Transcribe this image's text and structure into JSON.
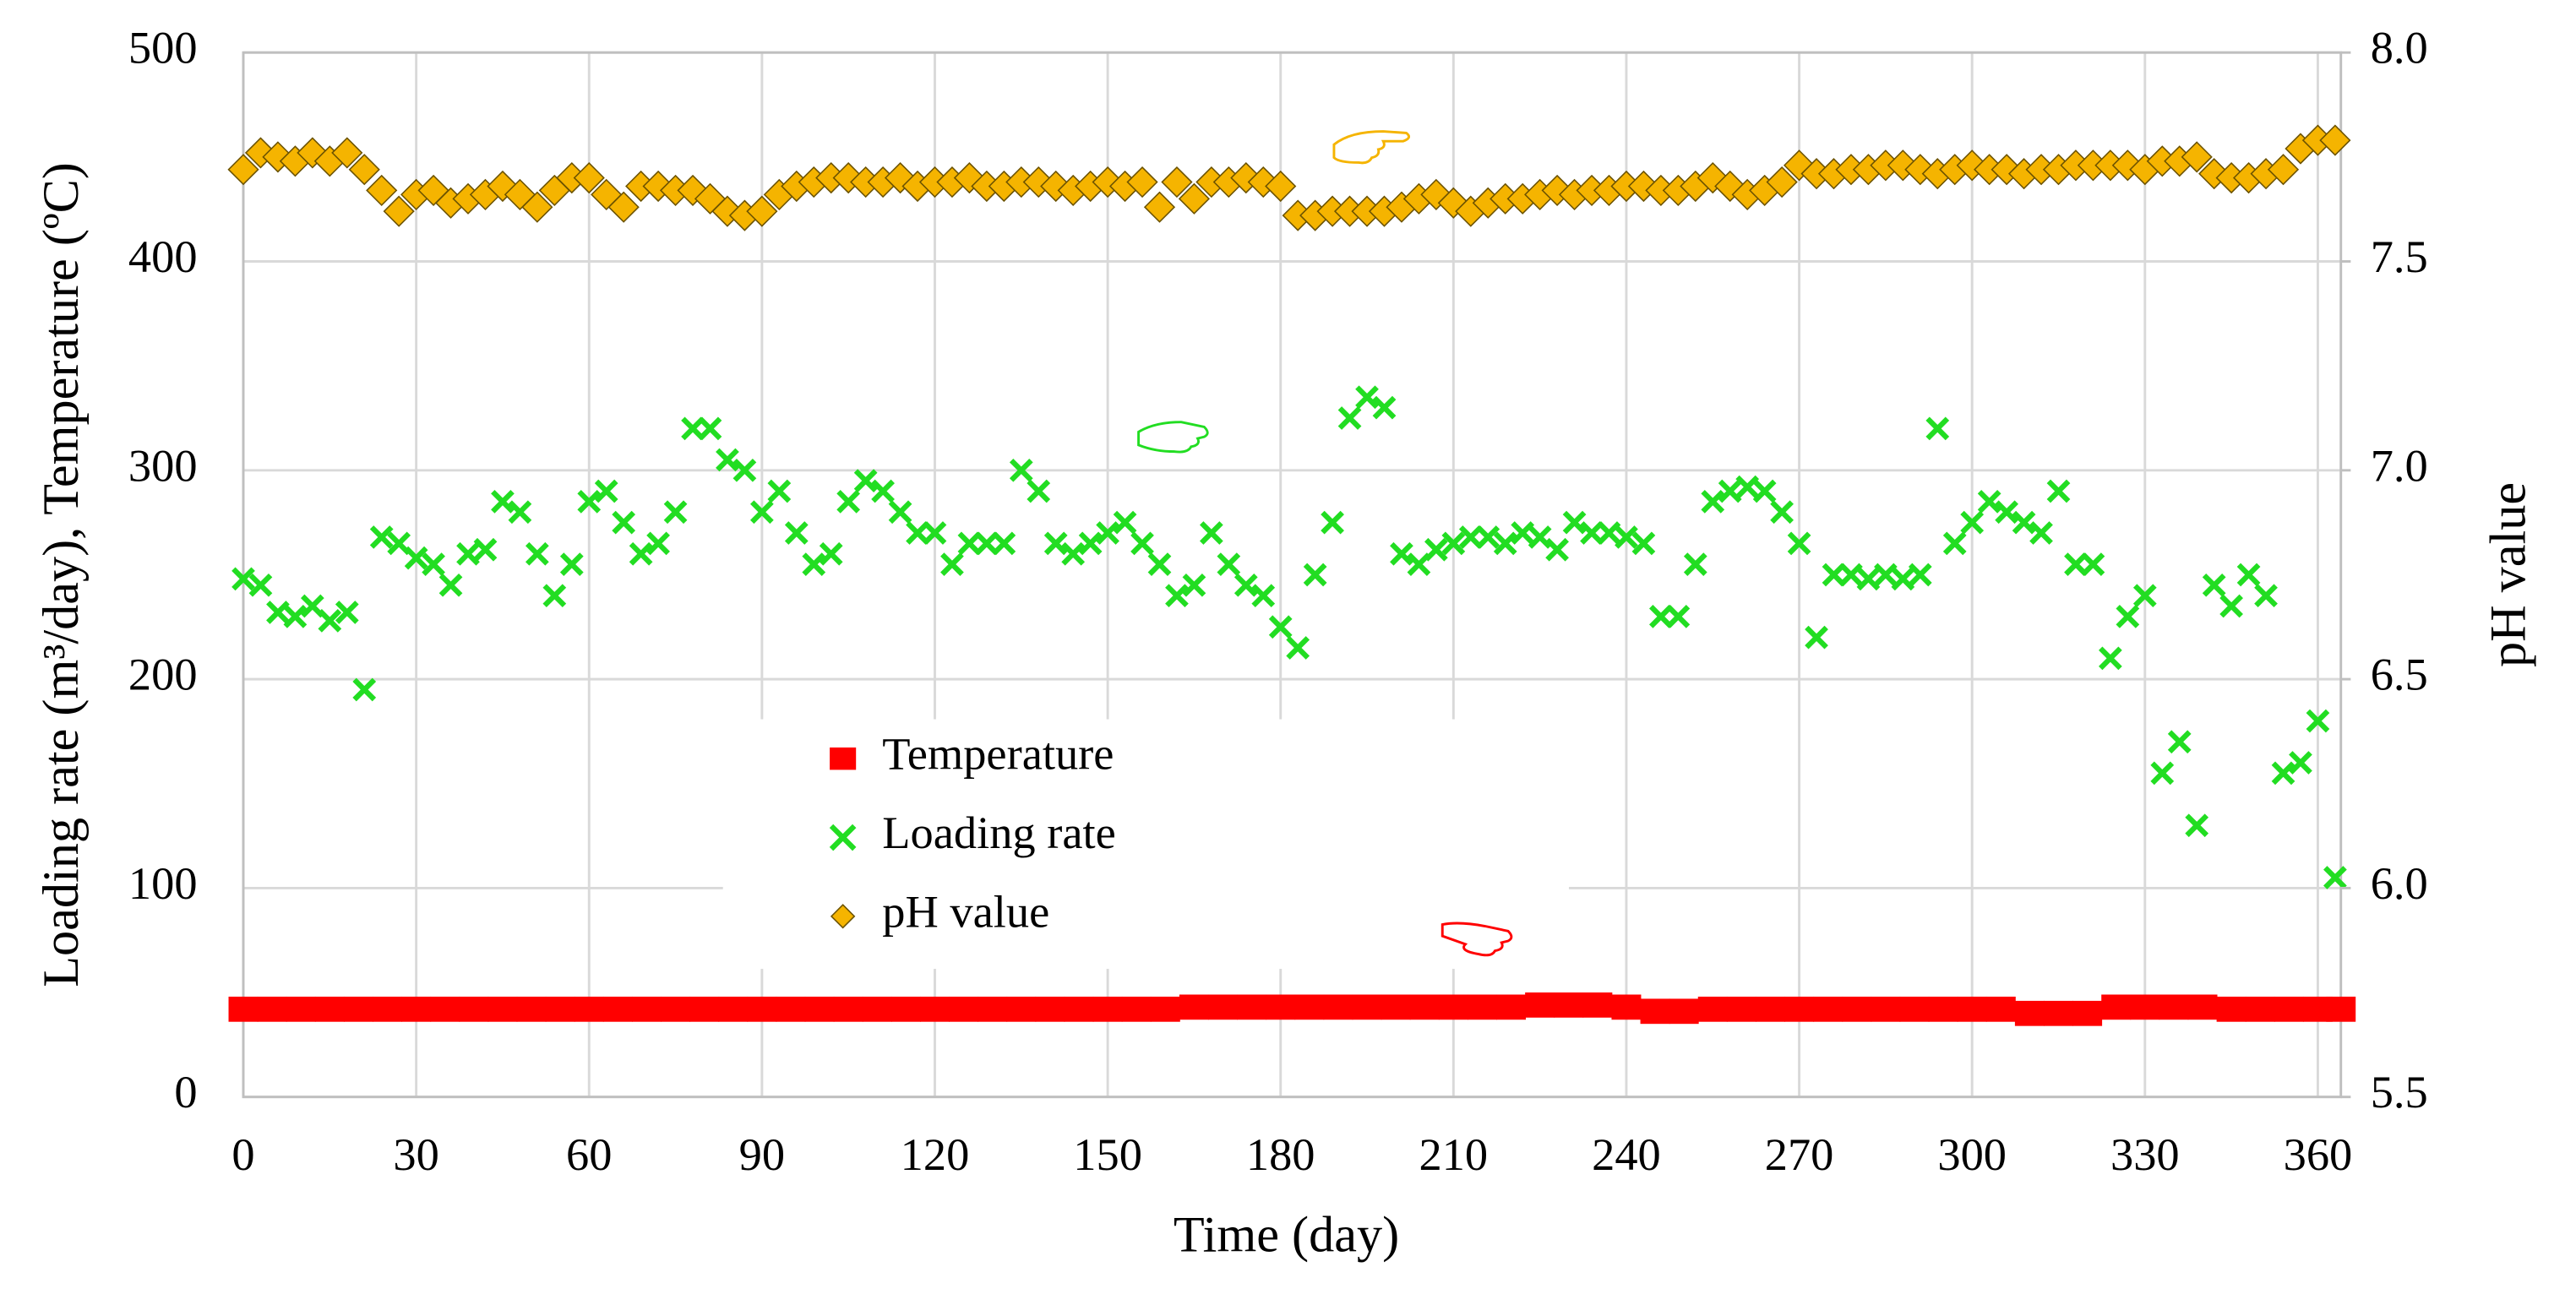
{
  "chart_data": {
    "type": "scatter",
    "xlabel": "Time (day)",
    "ylabel": "Loading rate (m³/day), Temperature (ºC)",
    "y2label": "pH value",
    "xlim": [
      0,
      364
    ],
    "xticks": [
      0,
      30,
      60,
      90,
      120,
      150,
      180,
      210,
      240,
      270,
      300,
      330,
      360
    ],
    "ylim": [
      0,
      500
    ],
    "yticks": [
      0,
      100,
      200,
      300,
      400,
      500
    ],
    "y2lim": [
      5.5,
      8.0
    ],
    "y2ticks": [
      5.5,
      {
        "value": 6,
        "label": "6.0"
      },
      6.5,
      {
        "value": 7,
        "label": "7.0"
      },
      7.5,
      {
        "value": 8,
        "label": "8.0"
      }
    ],
    "grid": true,
    "legend": "center",
    "series": [
      {
        "name": "Temperature",
        "color": "#ff0000",
        "marker": "square",
        "x": [
          0,
          5,
          10,
          15,
          20,
          25,
          30,
          35,
          40,
          45,
          50,
          55,
          60,
          65,
          70,
          75,
          80,
          85,
          90,
          95,
          100,
          105,
          110,
          115,
          120,
          125,
          130,
          135,
          140,
          145,
          150,
          155,
          160,
          165,
          170,
          175,
          180,
          185,
          190,
          195,
          200,
          205,
          210,
          215,
          220,
          225,
          230,
          235,
          240,
          245,
          250,
          255,
          260,
          265,
          270,
          275,
          280,
          285,
          290,
          295,
          300,
          305,
          310,
          315,
          320,
          325,
          330,
          335,
          340,
          345,
          350,
          355,
          360,
          364
        ],
        "values": [
          42,
          42,
          42,
          42,
          42,
          42,
          42,
          42,
          42,
          42,
          42,
          42,
          42,
          42,
          42,
          42,
          42,
          42,
          42,
          42,
          42,
          42,
          42,
          42,
          42,
          42,
          42,
          42,
          42,
          42,
          42,
          42,
          42,
          43,
          43,
          43,
          43,
          43,
          43,
          43,
          43,
          43,
          43,
          43,
          43,
          44,
          44,
          44,
          43,
          41,
          41,
          42,
          42,
          42,
          42,
          42,
          42,
          42,
          42,
          42,
          42,
          42,
          40,
          40,
          40,
          43,
          43,
          43,
          43,
          42,
          42,
          42,
          42,
          42
        ]
      },
      {
        "name": "Loading rate",
        "color": "#22dd22",
        "marker": "x",
        "x": [
          0,
          3,
          6,
          9,
          12,
          15,
          18,
          21,
          24,
          27,
          30,
          33,
          36,
          39,
          42,
          45,
          48,
          51,
          54,
          57,
          60,
          63,
          66,
          69,
          72,
          75,
          78,
          81,
          84,
          87,
          90,
          93,
          96,
          99,
          102,
          105,
          108,
          111,
          114,
          117,
          120,
          123,
          126,
          129,
          132,
          135,
          138,
          141,
          144,
          147,
          150,
          153,
          156,
          159,
          162,
          165,
          168,
          171,
          174,
          177,
          180,
          183,
          186,
          189,
          192,
          195,
          198,
          201,
          204,
          207,
          210,
          213,
          216,
          219,
          222,
          225,
          228,
          231,
          234,
          237,
          240,
          243,
          246,
          249,
          252,
          255,
          258,
          261,
          264,
          267,
          270,
          273,
          276,
          279,
          282,
          285,
          288,
          291,
          294,
          297,
          300,
          303,
          306,
          309,
          312,
          315,
          318,
          321,
          324,
          327,
          330,
          333,
          336,
          339,
          342,
          345,
          348,
          351,
          354,
          357,
          360,
          363
        ],
        "values": [
          248,
          245,
          232,
          230,
          235,
          228,
          232,
          195,
          268,
          265,
          258,
          255,
          245,
          260,
          262,
          285,
          280,
          260,
          240,
          255,
          285,
          290,
          275,
          260,
          265,
          280,
          320,
          320,
          305,
          300,
          280,
          290,
          270,
          255,
          260,
          285,
          295,
          290,
          280,
          270,
          270,
          255,
          265,
          265,
          265,
          300,
          290,
          265,
          260,
          265,
          270,
          275,
          265,
          255,
          240,
          245,
          270,
          255,
          245,
          240,
          225,
          215,
          250,
          275,
          325,
          335,
          330,
          260,
          255,
          262,
          265,
          268,
          268,
          265,
          270,
          268,
          262,
          275,
          270,
          270,
          268,
          265,
          230,
          230,
          255,
          285,
          290,
          292,
          290,
          280,
          265,
          220,
          250,
          250,
          248,
          250,
          248,
          250,
          320,
          265,
          275,
          285,
          280,
          275,
          270,
          290,
          255,
          255,
          210,
          230,
          240,
          155,
          170,
          130,
          245,
          235,
          250,
          240,
          155,
          160,
          180,
          105
        ]
      },
      {
        "name": "pH value",
        "color": "#f5b400",
        "marker": "diamond",
        "axis": "y2",
        "x": [
          0,
          3,
          6,
          9,
          12,
          15,
          18,
          21,
          24,
          27,
          30,
          33,
          36,
          39,
          42,
          45,
          48,
          51,
          54,
          57,
          60,
          63,
          66,
          69,
          72,
          75,
          78,
          81,
          84,
          87,
          90,
          93,
          96,
          99,
          102,
          105,
          108,
          111,
          114,
          117,
          120,
          123,
          126,
          129,
          132,
          135,
          138,
          141,
          144,
          147,
          150,
          153,
          156,
          159,
          162,
          165,
          168,
          171,
          174,
          177,
          180,
          183,
          186,
          189,
          192,
          195,
          198,
          201,
          204,
          207,
          210,
          213,
          216,
          219,
          222,
          225,
          228,
          231,
          234,
          237,
          240,
          243,
          246,
          249,
          252,
          255,
          258,
          261,
          264,
          267,
          270,
          273,
          276,
          279,
          282,
          285,
          288,
          291,
          294,
          297,
          300,
          303,
          306,
          309,
          312,
          315,
          318,
          321,
          324,
          327,
          330,
          333,
          336,
          339,
          342,
          345,
          348,
          351,
          354,
          357,
          360,
          363
        ],
        "values": [
          7.72,
          7.76,
          7.75,
          7.74,
          7.76,
          7.74,
          7.76,
          7.72,
          7.67,
          7.62,
          7.66,
          7.67,
          7.64,
          7.65,
          7.66,
          7.68,
          7.66,
          7.63,
          7.67,
          7.7,
          7.7,
          7.66,
          7.63,
          7.68,
          7.68,
          7.67,
          7.67,
          7.65,
          7.62,
          7.61,
          7.62,
          7.66,
          7.68,
          7.69,
          7.7,
          7.7,
          7.69,
          7.69,
          7.7,
          7.68,
          7.69,
          7.69,
          7.7,
          7.68,
          7.68,
          7.69,
          7.69,
          7.68,
          7.67,
          7.68,
          7.69,
          7.68,
          7.69,
          7.63,
          7.69,
          7.65,
          7.69,
          7.69,
          7.7,
          7.69,
          7.68,
          7.61,
          7.61,
          7.62,
          7.62,
          7.62,
          7.62,
          7.63,
          7.65,
          7.66,
          7.64,
          7.62,
          7.64,
          7.65,
          7.65,
          7.66,
          7.67,
          7.66,
          7.67,
          7.67,
          7.68,
          7.68,
          7.67,
          7.67,
          7.68,
          7.7,
          7.68,
          7.66,
          7.67,
          7.69,
          7.73,
          7.71,
          7.71,
          7.72,
          7.72,
          7.73,
          7.73,
          7.72,
          7.71,
          7.72,
          7.73,
          7.72,
          7.72,
          7.71,
          7.72,
          7.72,
          7.73,
          7.73,
          7.73,
          7.73,
          7.72,
          7.74,
          7.74,
          7.75,
          7.71,
          7.7,
          7.7,
          7.71,
          7.72,
          7.77,
          7.79,
          7.79
        ]
      }
    ]
  }
}
